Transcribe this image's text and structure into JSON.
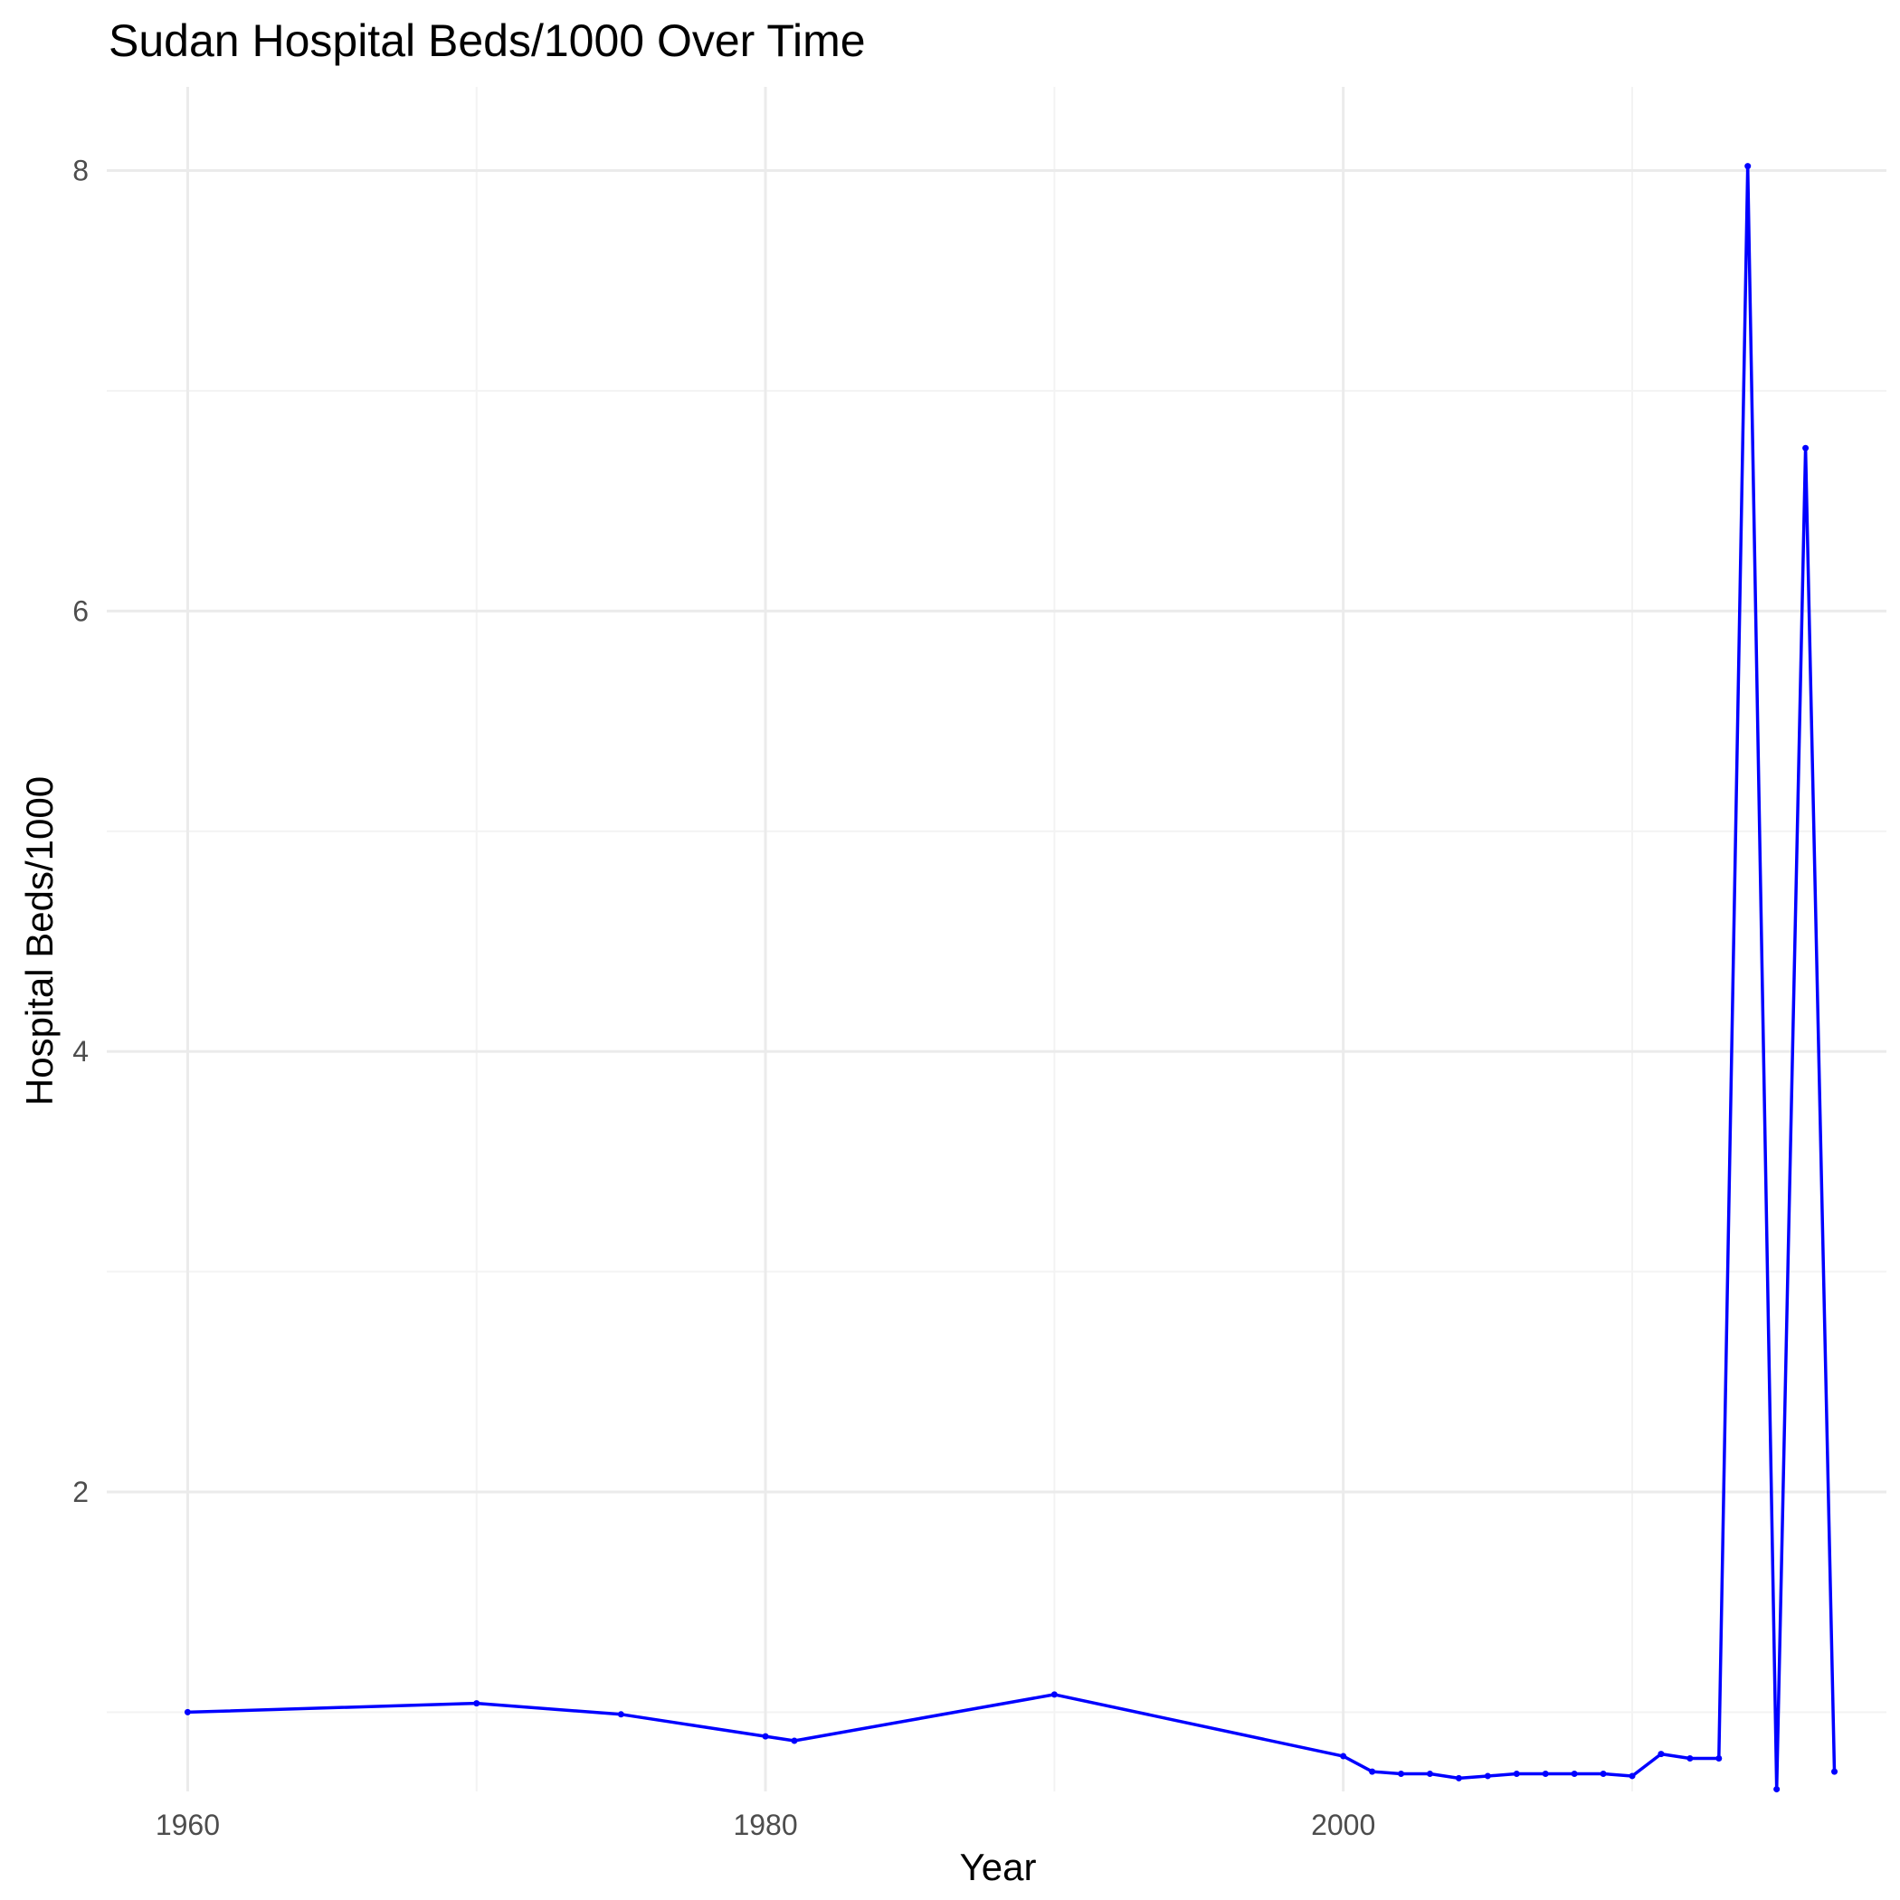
{
  "chart_data": {
    "type": "line",
    "title": "Sudan Hospital Beds/1000 Over Time",
    "xlabel": "Year",
    "ylabel": "Hospital Beds/1000",
    "xlim": [
      1957.2,
      2018.8
    ],
    "ylim": [
      0.64,
      8.38
    ],
    "x_ticks": [
      1960,
      1980,
      2000
    ],
    "x_tick_labels": [
      "1960",
      "1980",
      "2000"
    ],
    "y_ticks": [
      2,
      4,
      6,
      8
    ],
    "y_tick_labels": [
      "2",
      "4",
      "6",
      "8"
    ],
    "grid": true,
    "line_color": "#0000ff",
    "series": [
      {
        "x": [
          1960,
          1970,
          1975,
          1980,
          1981,
          1990,
          2000,
          2001,
          2002,
          2003,
          2004,
          2005,
          2006,
          2007,
          2008,
          2009,
          2010,
          2011,
          2012,
          2013,
          2014,
          2015,
          2016,
          2017
        ],
        "y": [
          1.0,
          1.04,
          0.99,
          0.89,
          0.87,
          1.08,
          0.8,
          0.73,
          0.72,
          0.72,
          0.7,
          0.71,
          0.72,
          0.72,
          0.72,
          0.72,
          0.71,
          0.81,
          0.79,
          0.79,
          8.02,
          0.65,
          6.74,
          0.73
        ]
      }
    ]
  }
}
